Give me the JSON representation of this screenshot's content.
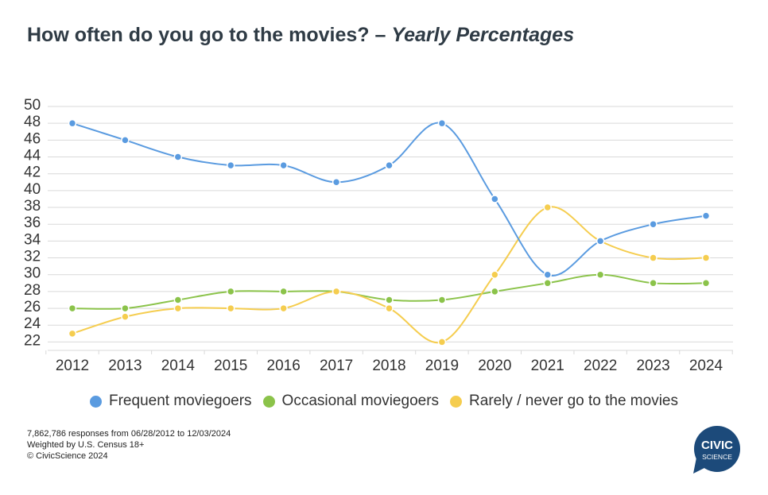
{
  "header": {
    "title_main": "How often do you go to the movies? – ",
    "title_emph": "Yearly Percentages"
  },
  "chart_data": {
    "type": "line",
    "title": "How often do you go to the movies? – Yearly Percentages",
    "xlabel": "",
    "ylabel": "",
    "categories": [
      "2012",
      "2013",
      "2014",
      "2015",
      "2016",
      "2017",
      "2018",
      "2019",
      "2020",
      "2021",
      "2022",
      "2023",
      "2024"
    ],
    "ylim": [
      21,
      50
    ],
    "yticks": [
      22,
      24,
      26,
      28,
      30,
      32,
      34,
      36,
      38,
      40,
      42,
      44,
      46,
      48,
      50
    ],
    "grid": true,
    "legend_position": "bottom",
    "series": [
      {
        "name": "Frequent moviegoers",
        "color": "#5a9be0",
        "values": [
          48,
          46,
          44,
          43,
          43,
          41,
          43,
          48,
          39,
          30,
          34,
          36,
          37
        ]
      },
      {
        "name": "Occasional moviegoers",
        "color": "#8bc34a",
        "values": [
          26,
          26,
          27,
          28,
          28,
          28,
          27,
          27,
          28,
          29,
          30,
          29,
          29
        ]
      },
      {
        "name": "Rarely / never go to the movies",
        "color": "#f5cd4f",
        "values": [
          23,
          25,
          26,
          26,
          26,
          28,
          26,
          22,
          30,
          38,
          34,
          32,
          32
        ]
      }
    ]
  },
  "footer": {
    "line1": "7,862,786 responses from 06/28/2012 to 12/03/2024",
    "line2": "Weighted by U.S. Census 18+",
    "line3": "© CivicScience 2024"
  },
  "logo": {
    "line1": "CIVIC",
    "line2": "SCIENCE",
    "color": "#1c4a7a"
  }
}
